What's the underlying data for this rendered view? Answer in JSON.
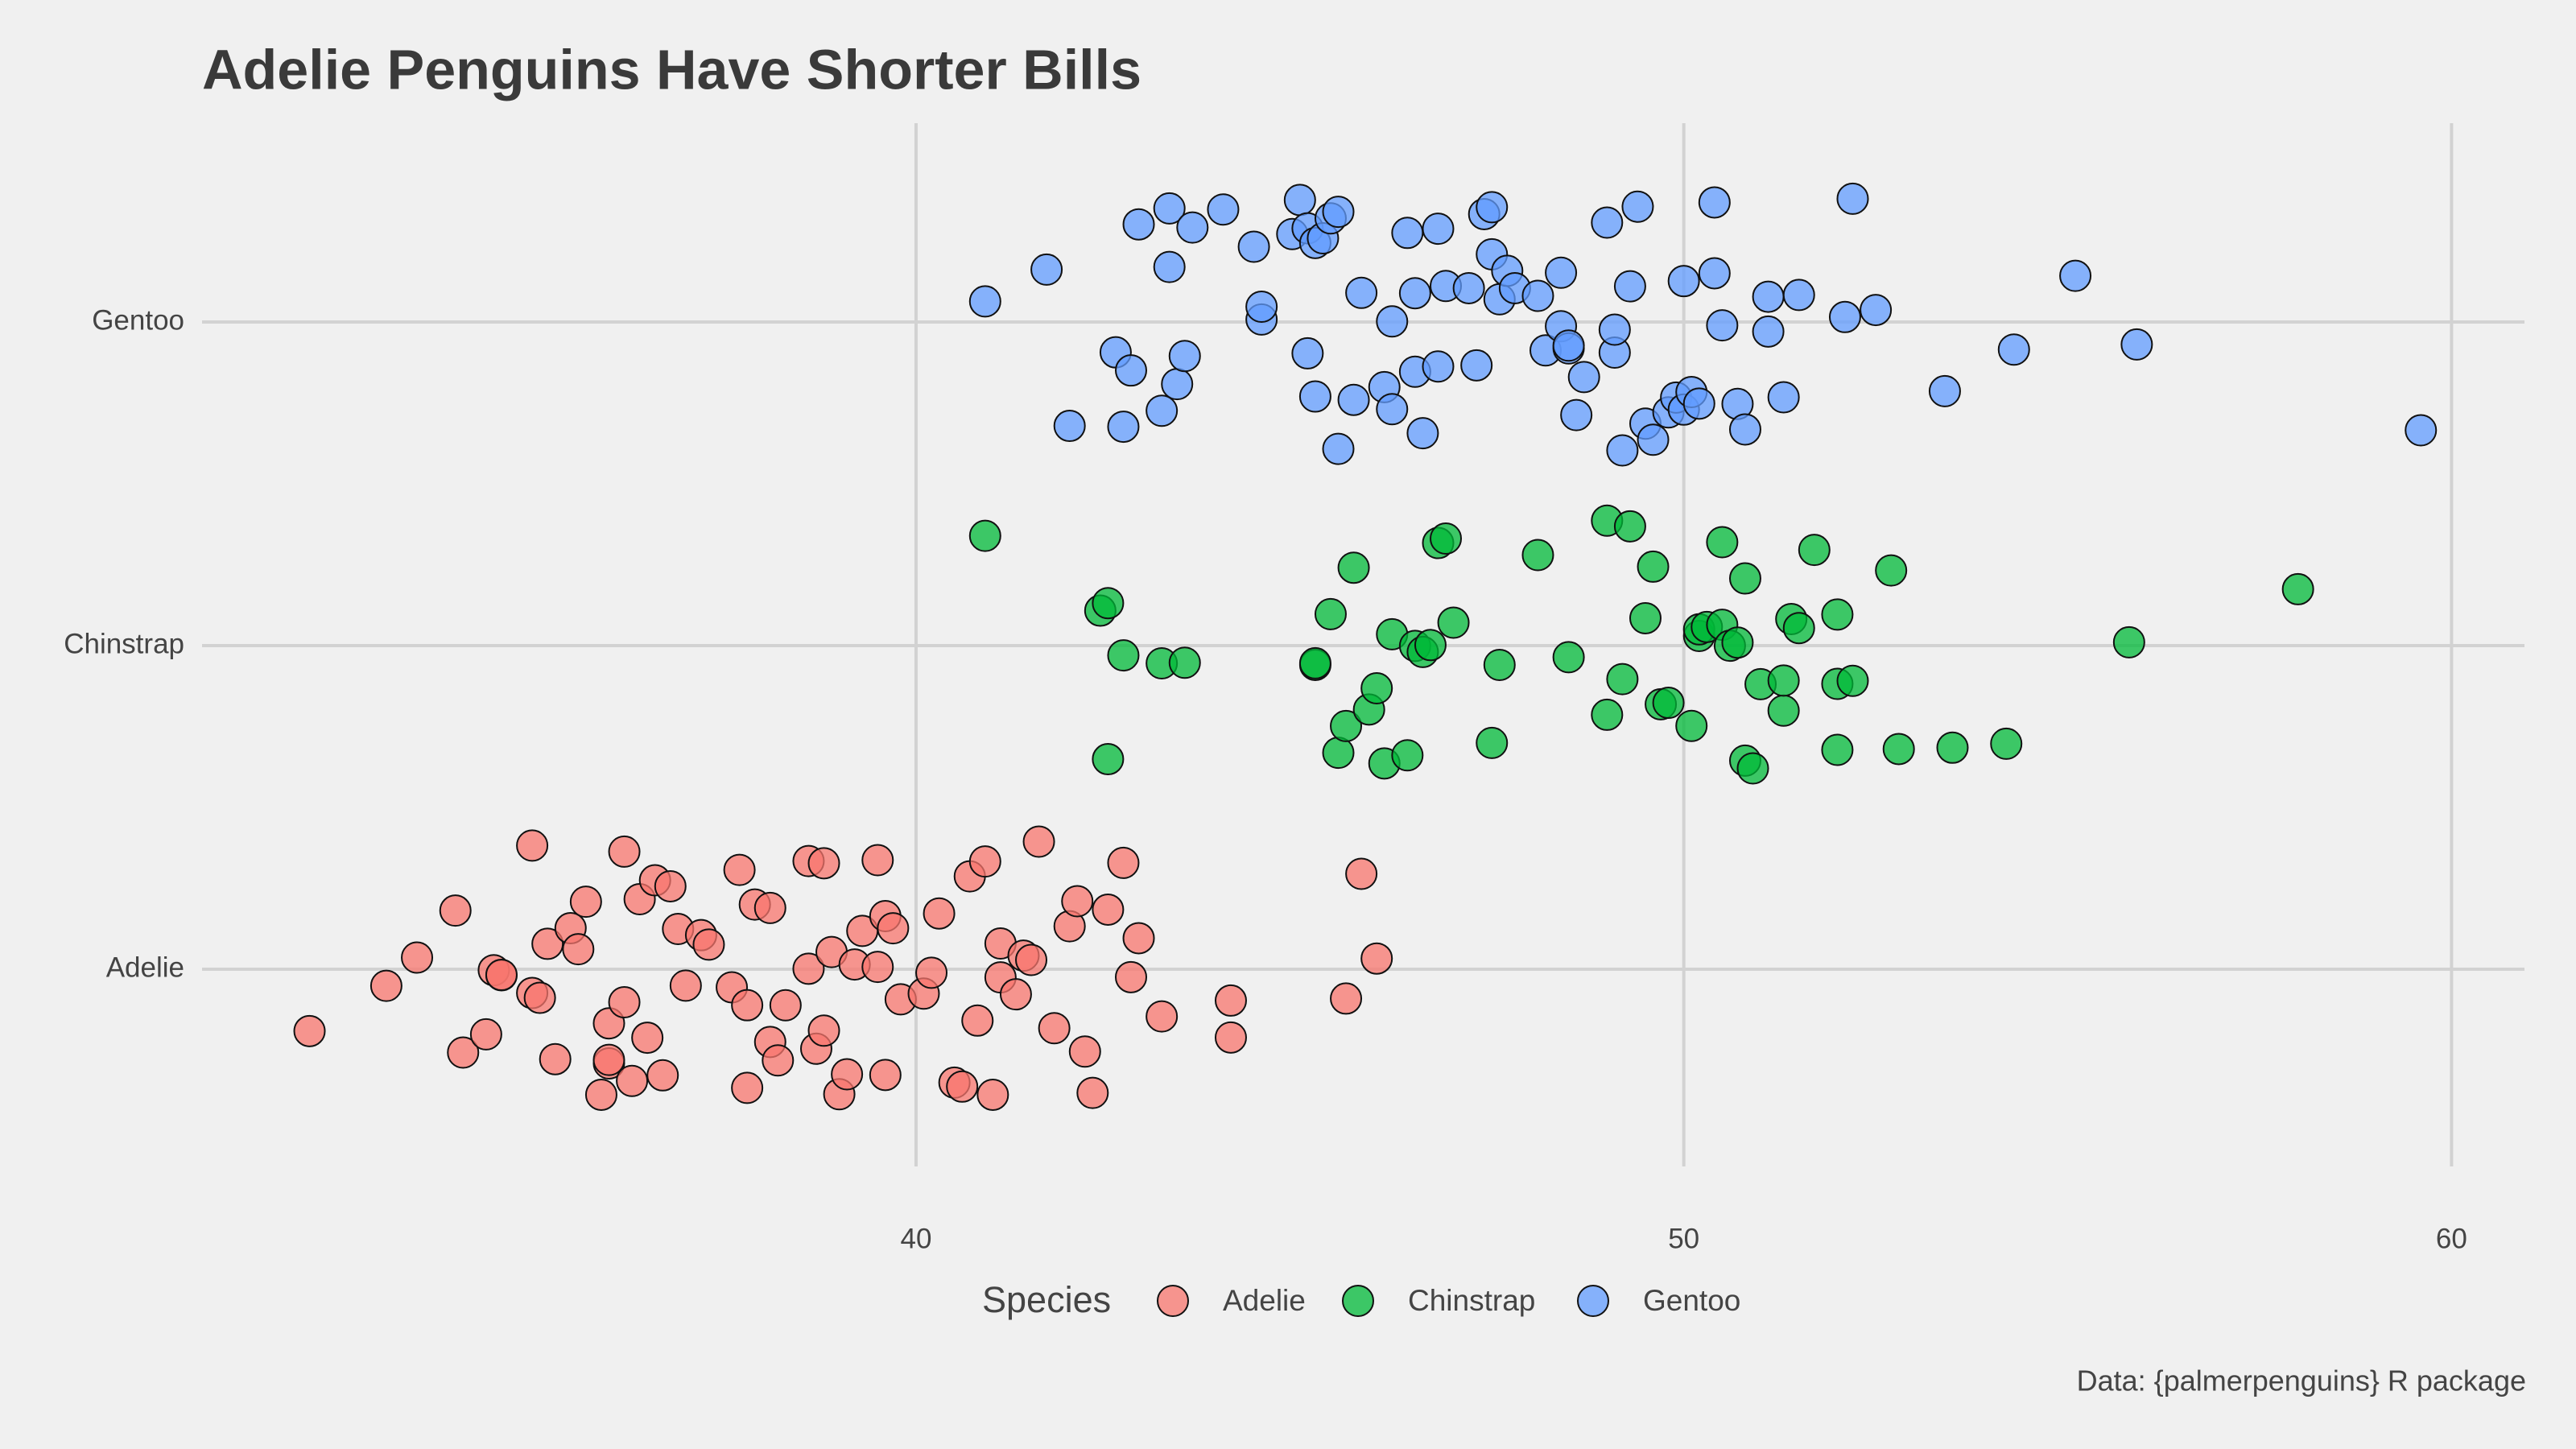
{
  "chart_data": {
    "type": "scatter",
    "title": "Adelie Penguins Have Shorter Bills",
    "caption": "Data: {palmerpenguins} R package",
    "legend_title": "Species",
    "categories": [
      "Adelie",
      "Chinstrap",
      "Gentoo"
    ],
    "xlim": [
      30.7,
      60.95
    ],
    "xticks": [
      40,
      50,
      60
    ],
    "grid": true,
    "legend_position": "bottom",
    "series": [
      {
        "name": "Adelie",
        "color": "#F8766D",
        "values": [
          32.1,
          33.1,
          33.5,
          34.0,
          34.1,
          34.4,
          34.5,
          34.6,
          34.6,
          35.0,
          35.0,
          35.1,
          35.2,
          35.3,
          35.5,
          35.6,
          35.7,
          35.9,
          36.0,
          36.0,
          36.0,
          36.2,
          36.2,
          36.3,
          36.4,
          36.5,
          36.6,
          36.7,
          36.8,
          36.9,
          37.0,
          37.2,
          37.3,
          37.6,
          37.7,
          37.8,
          37.8,
          37.9,
          38.1,
          38.1,
          38.2,
          38.3,
          38.6,
          38.6,
          38.7,
          38.8,
          38.8,
          38.9,
          39.0,
          39.1,
          39.2,
          39.3,
          39.5,
          39.5,
          39.6,
          39.6,
          39.7,
          39.8,
          40.1,
          40.2,
          40.3,
          40.5,
          40.6,
          40.7,
          40.8,
          40.9,
          41.0,
          41.1,
          41.1,
          41.3,
          41.4,
          41.5,
          41.6,
          41.8,
          42.0,
          42.1,
          42.2,
          42.3,
          42.5,
          42.7,
          42.8,
          42.9,
          43.2,
          44.1,
          44.1,
          45.6,
          45.8,
          46.0
        ]
      },
      {
        "name": "Chinstrap",
        "color": "#00BA38",
        "values": [
          40.9,
          42.4,
          42.5,
          42.5,
          42.7,
          43.2,
          43.5,
          45.2,
          45.2,
          45.4,
          45.5,
          45.6,
          45.7,
          45.9,
          46.0,
          46.1,
          46.2,
          46.4,
          46.5,
          46.6,
          46.7,
          46.8,
          46.9,
          47.0,
          47.5,
          47.6,
          48.1,
          48.5,
          49.0,
          49.0,
          49.2,
          49.3,
          49.5,
          49.6,
          49.7,
          49.8,
          50.1,
          50.2,
          50.2,
          50.3,
          50.5,
          50.5,
          50.6,
          50.7,
          50.8,
          50.8,
          50.9,
          51.0,
          51.3,
          51.3,
          51.4,
          51.5,
          51.7,
          52.0,
          52.0,
          52.0,
          52.2,
          52.7,
          52.8,
          53.5,
          54.2,
          55.8,
          58.0
        ]
      },
      {
        "name": "Gentoo",
        "color": "#619CFF",
        "values": [
          40.9,
          41.7,
          42.0,
          42.6,
          42.7,
          42.8,
          42.9,
          43.2,
          43.3,
          43.3,
          43.4,
          43.5,
          43.6,
          44.0,
          44.4,
          44.5,
          44.5,
          44.9,
          45.0,
          45.1,
          45.1,
          45.2,
          45.2,
          45.3,
          45.4,
          45.5,
          45.5,
          45.7,
          45.8,
          46.1,
          46.2,
          46.2,
          46.4,
          46.5,
          46.5,
          46.6,
          46.8,
          46.8,
          46.9,
          47.2,
          47.3,
          47.4,
          47.5,
          47.5,
          47.6,
          47.7,
          47.8,
          48.1,
          48.2,
          48.4,
          48.4,
          48.5,
          48.5,
          48.6,
          48.7,
          49.0,
          49.1,
          49.1,
          49.2,
          49.3,
          49.4,
          49.5,
          49.6,
          49.8,
          49.9,
          50.0,
          50.0,
          50.1,
          50.2,
          50.4,
          50.4,
          50.5,
          50.7,
          50.8,
          51.1,
          51.1,
          51.3,
          51.5,
          52.1,
          52.2,
          52.5,
          53.4,
          54.3,
          55.1,
          55.9,
          59.6
        ]
      }
    ]
  }
}
